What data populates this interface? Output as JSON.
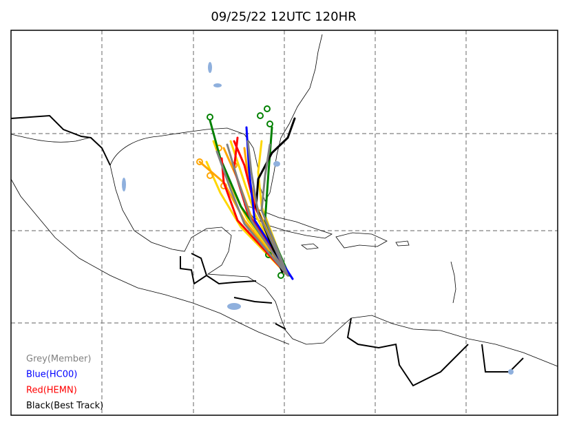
{
  "title": "09/25/22 12UTC 120HR",
  "legend": [
    {
      "label": "Grey(Member)",
      "color": "#808080"
    },
    {
      "label": "Blue(HC00)",
      "color": "#0000ff"
    },
    {
      "label": "Red(HEMN)",
      "color": "#ff0000"
    },
    {
      "label": "Black(Best Track)",
      "color": "#000000"
    }
  ]
}
